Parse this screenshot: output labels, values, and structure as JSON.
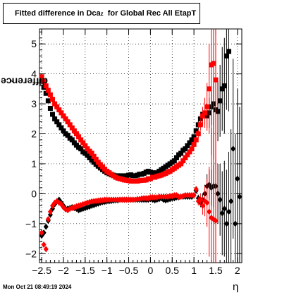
{
  "title": {
    "main": "Fitted difference in Dca",
    "sub": "z",
    "rest": "  for Global Rec All EtapT"
  },
  "timestamp": "Mon Oct 21 08:49:19 2024",
  "chart_data": {
    "type": "scatter",
    "xlabel": "η",
    "ylabel_main": "difference in Dca",
    "ylabel_sub": "z",
    "xlim": [
      -2.55,
      2.1
    ],
    "ylim": [
      -2.3,
      5.5
    ],
    "xticks": [
      -2.5,
      -2,
      -1.5,
      -1,
      -0.5,
      0,
      0.5,
      1,
      1.5,
      2
    ],
    "xtick_labels": [
      "−2.5",
      "−2",
      "−1.5",
      "−1",
      "−0.5",
      "0",
      "0.5",
      "1",
      "1.5",
      "2"
    ],
    "yticks": [
      -2,
      -1,
      0,
      1,
      2,
      3,
      4,
      5
    ],
    "ytick_labels": [
      "−2",
      "−1",
      "0",
      "1",
      "2",
      "3",
      "4",
      "5"
    ],
    "grid": true,
    "colors": {
      "black": "#000000",
      "red": "#ff0000"
    },
    "series": [
      {
        "marker": "square",
        "color": "#000000",
        "x": [
          -2.5,
          -2.45,
          -2.4,
          -2.35,
          -2.3,
          -2.25,
          -2.2,
          -2.15,
          -2.1,
          -2.05,
          -2.0,
          -1.95,
          -1.9,
          -1.85,
          -1.8,
          -1.75,
          -1.7,
          -1.65,
          -1.6,
          -1.55,
          -1.5,
          -1.45,
          -1.4,
          -1.35,
          -1.3,
          -1.25,
          -1.2,
          -1.15,
          -1.1,
          -1.05,
          -1.0,
          -0.95,
          -0.9,
          -0.85,
          -0.8,
          -0.75,
          -0.7,
          -0.65,
          -0.6,
          -0.55,
          -0.5,
          -0.45,
          -0.4,
          -0.35,
          -0.3,
          -0.25,
          -0.2,
          -0.15,
          -0.1,
          -0.05,
          0.0,
          0.05,
          0.1,
          0.15,
          0.2,
          0.25,
          0.3,
          0.35,
          0.4,
          0.45,
          0.5,
          0.55,
          0.6,
          0.65,
          0.7,
          0.75,
          0.8,
          0.85,
          0.9,
          0.95,
          1.0,
          1.05,
          1.1,
          1.15,
          1.2,
          1.25,
          1.3,
          1.35,
          1.4,
          1.45,
          1.5,
          1.55,
          1.6,
          1.65,
          1.7,
          1.75,
          1.8
        ],
        "y": [
          3.75,
          3.55,
          3.35,
          3.1,
          2.85,
          2.65,
          2.5,
          2.4,
          2.3,
          2.2,
          2.1,
          2.0,
          1.95,
          1.85,
          1.8,
          1.7,
          1.62,
          1.55,
          1.5,
          1.4,
          1.35,
          1.28,
          1.2,
          1.12,
          1.05,
          0.98,
          0.92,
          0.86,
          0.8,
          0.75,
          0.7,
          0.67,
          0.63,
          0.62,
          0.6,
          0.6,
          0.6,
          0.58,
          0.6,
          0.6,
          0.62,
          0.63,
          0.6,
          0.6,
          0.62,
          0.65,
          0.65,
          0.68,
          0.72,
          0.75,
          0.72,
          0.7,
          0.65,
          0.7,
          0.75,
          0.8,
          0.85,
          0.9,
          0.95,
          1.0,
          1.05,
          1.1,
          1.2,
          1.3,
          1.35,
          1.45,
          1.5,
          1.6,
          1.7,
          1.8,
          1.9,
          2.1,
          2.3,
          2.5,
          2.65,
          2.6,
          2.6,
          2.7,
          2.9,
          3.0,
          2.8,
          2.75,
          3.1,
          3.5,
          3.6,
          4.6,
          4.75
        ],
        "err": [
          0.05,
          0.04,
          0.03,
          0.03,
          0.03,
          0.02,
          0.02,
          0.02,
          0.02,
          0.02,
          0.02,
          0.02,
          0.02,
          0.02,
          0.02,
          0.02,
          0.02,
          0.02,
          0.02,
          0.02,
          0.02,
          0.02,
          0.02,
          0.02,
          0.02,
          0.02,
          0.02,
          0.02,
          0.02,
          0.02,
          0.02,
          0.02,
          0.02,
          0.02,
          0.02,
          0.02,
          0.02,
          0.02,
          0.02,
          0.02,
          0.02,
          0.02,
          0.02,
          0.02,
          0.02,
          0.02,
          0.02,
          0.02,
          0.02,
          0.02,
          0.02,
          0.02,
          0.02,
          0.02,
          0.02,
          0.02,
          0.02,
          0.02,
          0.02,
          0.02,
          0.02,
          0.02,
          0.02,
          0.02,
          0.02,
          0.03,
          0.03,
          0.04,
          0.05,
          0.06,
          0.08,
          0.1,
          0.12,
          0.15,
          0.2,
          0.3,
          0.4,
          0.5,
          0.6,
          0.7,
          0.9,
          1.0,
          1.2,
          1.4,
          1.6,
          1.8,
          2.0
        ]
      },
      {
        "marker": "square",
        "color": "#ff0000",
        "x": [
          -2.5,
          -2.45,
          -2.4,
          -2.35,
          -2.3,
          -2.25,
          -2.2,
          -2.15,
          -2.1,
          -2.05,
          -2.0,
          -1.95,
          -1.9,
          -1.85,
          -1.8,
          -1.75,
          -1.7,
          -1.65,
          -1.6,
          -1.55,
          -1.5,
          -1.45,
          -1.4,
          -1.35,
          -1.3,
          -1.25,
          -1.2,
          -1.15,
          -1.1,
          -1.05,
          -1.0,
          -0.95,
          -0.9,
          -0.85,
          -0.8,
          -0.75,
          -0.7,
          -0.65,
          -0.6,
          -0.55,
          -0.5,
          -0.45,
          -0.4,
          -0.35,
          -0.3,
          -0.25,
          -0.2,
          -0.15,
          -0.1,
          -0.05,
          0.0,
          0.05,
          0.1,
          0.15,
          0.2,
          0.25,
          0.3,
          0.35,
          0.4,
          0.45,
          0.5,
          0.55,
          0.6,
          0.65,
          0.7,
          0.75,
          0.8,
          0.85,
          0.9,
          0.95,
          1.0,
          1.05,
          1.1,
          1.15,
          1.2,
          1.25,
          1.3,
          1.35,
          1.4,
          1.45,
          1.5
        ],
        "y": [
          3.9,
          3.75,
          3.6,
          3.45,
          3.3,
          3.15,
          3.0,
          2.9,
          2.8,
          2.7,
          2.6,
          2.5,
          2.4,
          2.3,
          2.2,
          2.1,
          2.0,
          1.9,
          1.8,
          1.7,
          1.6,
          1.5,
          1.42,
          1.35,
          1.25,
          1.15,
          1.05,
          0.97,
          0.9,
          0.82,
          0.75,
          0.7,
          0.65,
          0.6,
          0.55,
          0.52,
          0.5,
          0.48,
          0.46,
          0.45,
          0.44,
          0.42,
          0.42,
          0.42,
          0.42,
          0.44,
          0.45,
          0.45,
          0.46,
          0.5,
          0.5,
          0.55,
          0.55,
          0.58,
          0.6,
          0.62,
          0.65,
          0.68,
          0.72,
          0.75,
          0.8,
          0.85,
          0.9,
          0.95,
          1.0,
          1.1,
          1.2,
          1.3,
          1.4,
          1.5,
          1.65,
          1.8,
          2.0,
          2.3,
          2.6,
          2.7,
          2.9,
          3.5,
          4.3,
          4.35,
          3.8
        ],
        "err": [
          0.05,
          0.04,
          0.03,
          0.03,
          0.03,
          0.02,
          0.02,
          0.02,
          0.02,
          0.02,
          0.02,
          0.02,
          0.02,
          0.02,
          0.02,
          0.02,
          0.02,
          0.02,
          0.02,
          0.02,
          0.02,
          0.02,
          0.02,
          0.02,
          0.02,
          0.02,
          0.02,
          0.02,
          0.02,
          0.02,
          0.02,
          0.02,
          0.02,
          0.02,
          0.02,
          0.02,
          0.02,
          0.02,
          0.02,
          0.02,
          0.02,
          0.02,
          0.02,
          0.02,
          0.02,
          0.02,
          0.02,
          0.02,
          0.02,
          0.02,
          0.02,
          0.02,
          0.02,
          0.02,
          0.02,
          0.02,
          0.02,
          0.02,
          0.02,
          0.02,
          0.02,
          0.02,
          0.02,
          0.02,
          0.02,
          0.03,
          0.03,
          0.04,
          0.05,
          0.06,
          0.08,
          0.1,
          0.14,
          0.2,
          0.3,
          0.5,
          0.8,
          1.5,
          3.0,
          3.2,
          3.0
        ]
      },
      {
        "marker": "diamond",
        "color": "#000000",
        "x": [
          -2.5,
          -2.45,
          -2.4,
          -2.35,
          -2.3,
          -2.25,
          -2.2,
          -2.15,
          -2.1,
          -2.05,
          -2.0,
          -1.95,
          -1.9,
          -1.85,
          -1.8,
          -1.75,
          -1.7,
          -1.65,
          -1.6,
          -1.55,
          -1.5,
          -1.45,
          -1.4,
          -1.35,
          -1.3,
          -1.25,
          -1.2,
          -1.15,
          -1.1,
          -1.05,
          -1.0,
          -0.95,
          -0.9,
          -0.85,
          -0.8,
          -0.75,
          -0.7,
          -0.65,
          -0.6,
          -0.55,
          -0.5,
          -0.45,
          -0.4,
          -0.35,
          -0.3,
          -0.25,
          -0.2,
          -0.15,
          -0.1,
          -0.05,
          0.0,
          0.05,
          0.1,
          0.15,
          0.2,
          0.25,
          0.3,
          0.35,
          0.4,
          0.45,
          0.5,
          0.55,
          0.6,
          0.65,
          0.7,
          0.75,
          0.8,
          0.85,
          0.9,
          0.95,
          1.0,
          1.05,
          1.1,
          1.15,
          1.2,
          1.25,
          1.3,
          1.35,
          1.4,
          1.45,
          1.5,
          1.55,
          1.6,
          1.65,
          1.7,
          1.75,
          1.8,
          1.85,
          1.9,
          1.95,
          2.0,
          2.05
        ],
        "y": [
          -1.4,
          -1.3,
          -1.1,
          -0.9,
          -0.7,
          -0.5,
          -0.35,
          -0.25,
          -0.2,
          -0.3,
          -0.4,
          -0.5,
          -0.5,
          -0.48,
          -0.45,
          -0.48,
          -0.5,
          -0.55,
          -0.52,
          -0.5,
          -0.48,
          -0.45,
          -0.43,
          -0.4,
          -0.38,
          -0.35,
          -0.33,
          -0.3,
          -0.28,
          -0.27,
          -0.25,
          -0.25,
          -0.24,
          -0.23,
          -0.22,
          -0.22,
          -0.2,
          -0.2,
          -0.2,
          -0.2,
          -0.2,
          -0.2,
          -0.2,
          -0.2,
          -0.2,
          -0.2,
          -0.2,
          -0.2,
          -0.2,
          -0.2,
          -0.18,
          -0.2,
          -0.22,
          -0.2,
          -0.18,
          -0.15,
          -0.2,
          -0.22,
          -0.2,
          -0.18,
          -0.15,
          -0.15,
          -0.12,
          -0.12,
          -0.1,
          -0.1,
          -0.1,
          -0.1,
          -0.1,
          -0.1,
          -0.05,
          0.1,
          -0.15,
          -0.3,
          -0.2,
          0.0,
          0.25,
          0.3,
          0.2,
          0.25,
          0.25,
          0.0,
          -0.2,
          -0.65,
          -0.5,
          -1.0,
          -0.6,
          -0.25,
          1.5,
          -1.0,
          0.5,
          -0.1
        ],
        "err": [
          0.05,
          0.04,
          0.03,
          0.03,
          0.03,
          0.02,
          0.02,
          0.02,
          0.02,
          0.02,
          0.02,
          0.02,
          0.02,
          0.02,
          0.02,
          0.02,
          0.02,
          0.02,
          0.02,
          0.02,
          0.02,
          0.02,
          0.02,
          0.02,
          0.02,
          0.02,
          0.02,
          0.02,
          0.02,
          0.02,
          0.02,
          0.02,
          0.02,
          0.02,
          0.02,
          0.02,
          0.02,
          0.02,
          0.02,
          0.02,
          0.02,
          0.02,
          0.02,
          0.02,
          0.02,
          0.02,
          0.02,
          0.02,
          0.02,
          0.02,
          0.02,
          0.02,
          0.02,
          0.02,
          0.02,
          0.02,
          0.02,
          0.02,
          0.02,
          0.02,
          0.02,
          0.02,
          0.02,
          0.02,
          0.02,
          0.03,
          0.03,
          0.04,
          0.05,
          0.06,
          0.08,
          0.1,
          0.12,
          0.15,
          0.2,
          0.3,
          0.4,
          0.5,
          0.6,
          0.7,
          0.9,
          1.0,
          1.2,
          1.4,
          1.6,
          1.8,
          2.0,
          2.4,
          3.0,
          3.0,
          3.0,
          3.0
        ]
      },
      {
        "marker": "diamond",
        "color": "#ff0000",
        "x": [
          -2.5,
          -2.45,
          -2.4,
          -2.35,
          -2.3,
          -2.25,
          -2.2,
          -2.15,
          -2.1,
          -2.05,
          -2.0,
          -1.95,
          -1.9,
          -1.85,
          -1.8,
          -1.75,
          -1.7,
          -1.65,
          -1.6,
          -1.55,
          -1.5,
          -1.45,
          -1.4,
          -1.35,
          -1.3,
          -1.25,
          -1.2,
          -1.15,
          -1.1,
          -1.05,
          -1.0,
          -0.95,
          -0.9,
          -0.85,
          -0.8,
          -0.75,
          -0.7,
          -0.65,
          -0.6,
          -0.55,
          -0.5,
          -0.45,
          -0.4,
          -0.35,
          -0.3,
          -0.25,
          -0.2,
          -0.15,
          -0.1,
          -0.05,
          0.0,
          0.05,
          0.1,
          0.15,
          0.2,
          0.25,
          0.3,
          0.35,
          0.4,
          0.45,
          0.5,
          0.55,
          0.6,
          0.65,
          0.7,
          0.75,
          0.8,
          0.85,
          0.9,
          0.95,
          1.0,
          1.05,
          1.1,
          1.15,
          1.2,
          1.25,
          1.3,
          1.35,
          1.4,
          1.45,
          1.5
        ],
        "y": [
          -1.3,
          -1.7,
          -1.85,
          -0.85,
          -0.6,
          -0.4,
          -0.3,
          -0.25,
          -0.3,
          -0.35,
          -0.45,
          -0.52,
          -0.55,
          -0.5,
          -0.48,
          -0.45,
          -0.42,
          -0.4,
          -0.38,
          -0.35,
          -0.33,
          -0.3,
          -0.28,
          -0.26,
          -0.25,
          -0.24,
          -0.23,
          -0.22,
          -0.22,
          -0.2,
          -0.2,
          -0.2,
          -0.2,
          -0.2,
          -0.2,
          -0.2,
          -0.2,
          -0.2,
          -0.2,
          -0.2,
          -0.2,
          -0.2,
          -0.2,
          -0.2,
          -0.18,
          -0.18,
          -0.16,
          -0.15,
          -0.15,
          -0.15,
          -0.12,
          -0.12,
          -0.12,
          -0.12,
          -0.1,
          -0.1,
          -0.1,
          -0.1,
          -0.1,
          -0.08,
          -0.08,
          -0.05,
          -0.05,
          -0.1,
          -0.1,
          -0.08,
          -0.05,
          -0.05,
          -0.05,
          -0.05,
          -0.05,
          0.15,
          -0.25,
          -0.2,
          -0.4,
          -0.25,
          -0.3,
          -0.6,
          -0.8,
          -0.85,
          -0.9
        ],
        "err": [
          0.05,
          0.04,
          0.03,
          0.03,
          0.03,
          0.02,
          0.02,
          0.02,
          0.02,
          0.02,
          0.02,
          0.02,
          0.02,
          0.02,
          0.02,
          0.02,
          0.02,
          0.02,
          0.02,
          0.02,
          0.02,
          0.02,
          0.02,
          0.02,
          0.02,
          0.02,
          0.02,
          0.02,
          0.02,
          0.02,
          0.02,
          0.02,
          0.02,
          0.02,
          0.02,
          0.02,
          0.02,
          0.02,
          0.02,
          0.02,
          0.02,
          0.02,
          0.02,
          0.02,
          0.02,
          0.02,
          0.02,
          0.02,
          0.02,
          0.02,
          0.02,
          0.02,
          0.02,
          0.02,
          0.02,
          0.02,
          0.02,
          0.02,
          0.02,
          0.02,
          0.02,
          0.02,
          0.02,
          0.02,
          0.02,
          0.03,
          0.03,
          0.04,
          0.05,
          0.06,
          0.08,
          0.1,
          0.14,
          0.2,
          0.3,
          0.5,
          0.8,
          1.5,
          3.0,
          3.2,
          3.0
        ]
      }
    ]
  }
}
